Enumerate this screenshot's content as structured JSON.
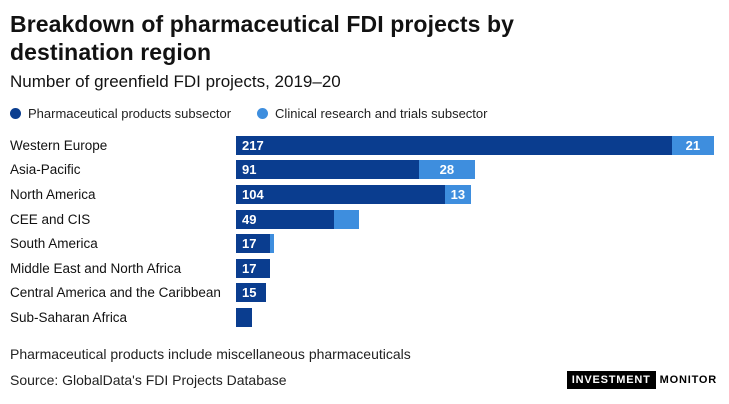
{
  "header": {
    "title": "Breakdown of pharmaceutical FDI projects by destination region",
    "subtitle": "Number of greenfield FDI projects, 2019–20"
  },
  "footer": {
    "note": "Pharmaceutical products include miscellaneous pharmaceuticals",
    "source": "Source: GlobalData's FDI Projects Database",
    "logo": {
      "part1": "INVESTMENT",
      "part2": "MONITOR"
    }
  },
  "colors": {
    "pharma_dark_blue": "#0a3d8f",
    "clinical_light_blue": "#3e8ede"
  },
  "chart_data": {
    "type": "bar",
    "orientation": "horizontal",
    "stacked": true,
    "title": "Breakdown of pharmaceutical FDI projects by destination region",
    "subtitle": "Number of greenfield FDI projects, 2019–20",
    "legend_position": "top",
    "grid": false,
    "xlim": [
      0,
      240
    ],
    "categories": [
      "Western Europe",
      "Asia-Pacific",
      "North America",
      "CEE and CIS",
      "South America",
      "Middle East and North Africa",
      "Central America and the Caribbean",
      "Sub-Saharan Africa"
    ],
    "series": [
      {
        "name": "Pharmaceutical products subsector",
        "color": "#0a3d8f",
        "values": [
          217,
          91,
          104,
          49,
          17,
          17,
          15,
          8
        ],
        "labels": [
          "217",
          "91",
          "104",
          "49",
          "17",
          "17",
          "15",
          ""
        ]
      },
      {
        "name": "Clinical research and trials subsector",
        "color": "#3e8ede",
        "values": [
          21,
          28,
          13,
          12,
          2,
          0,
          0,
          0
        ],
        "labels": [
          "21",
          "28",
          "13",
          "",
          "",
          "",
          "",
          ""
        ]
      }
    ]
  }
}
